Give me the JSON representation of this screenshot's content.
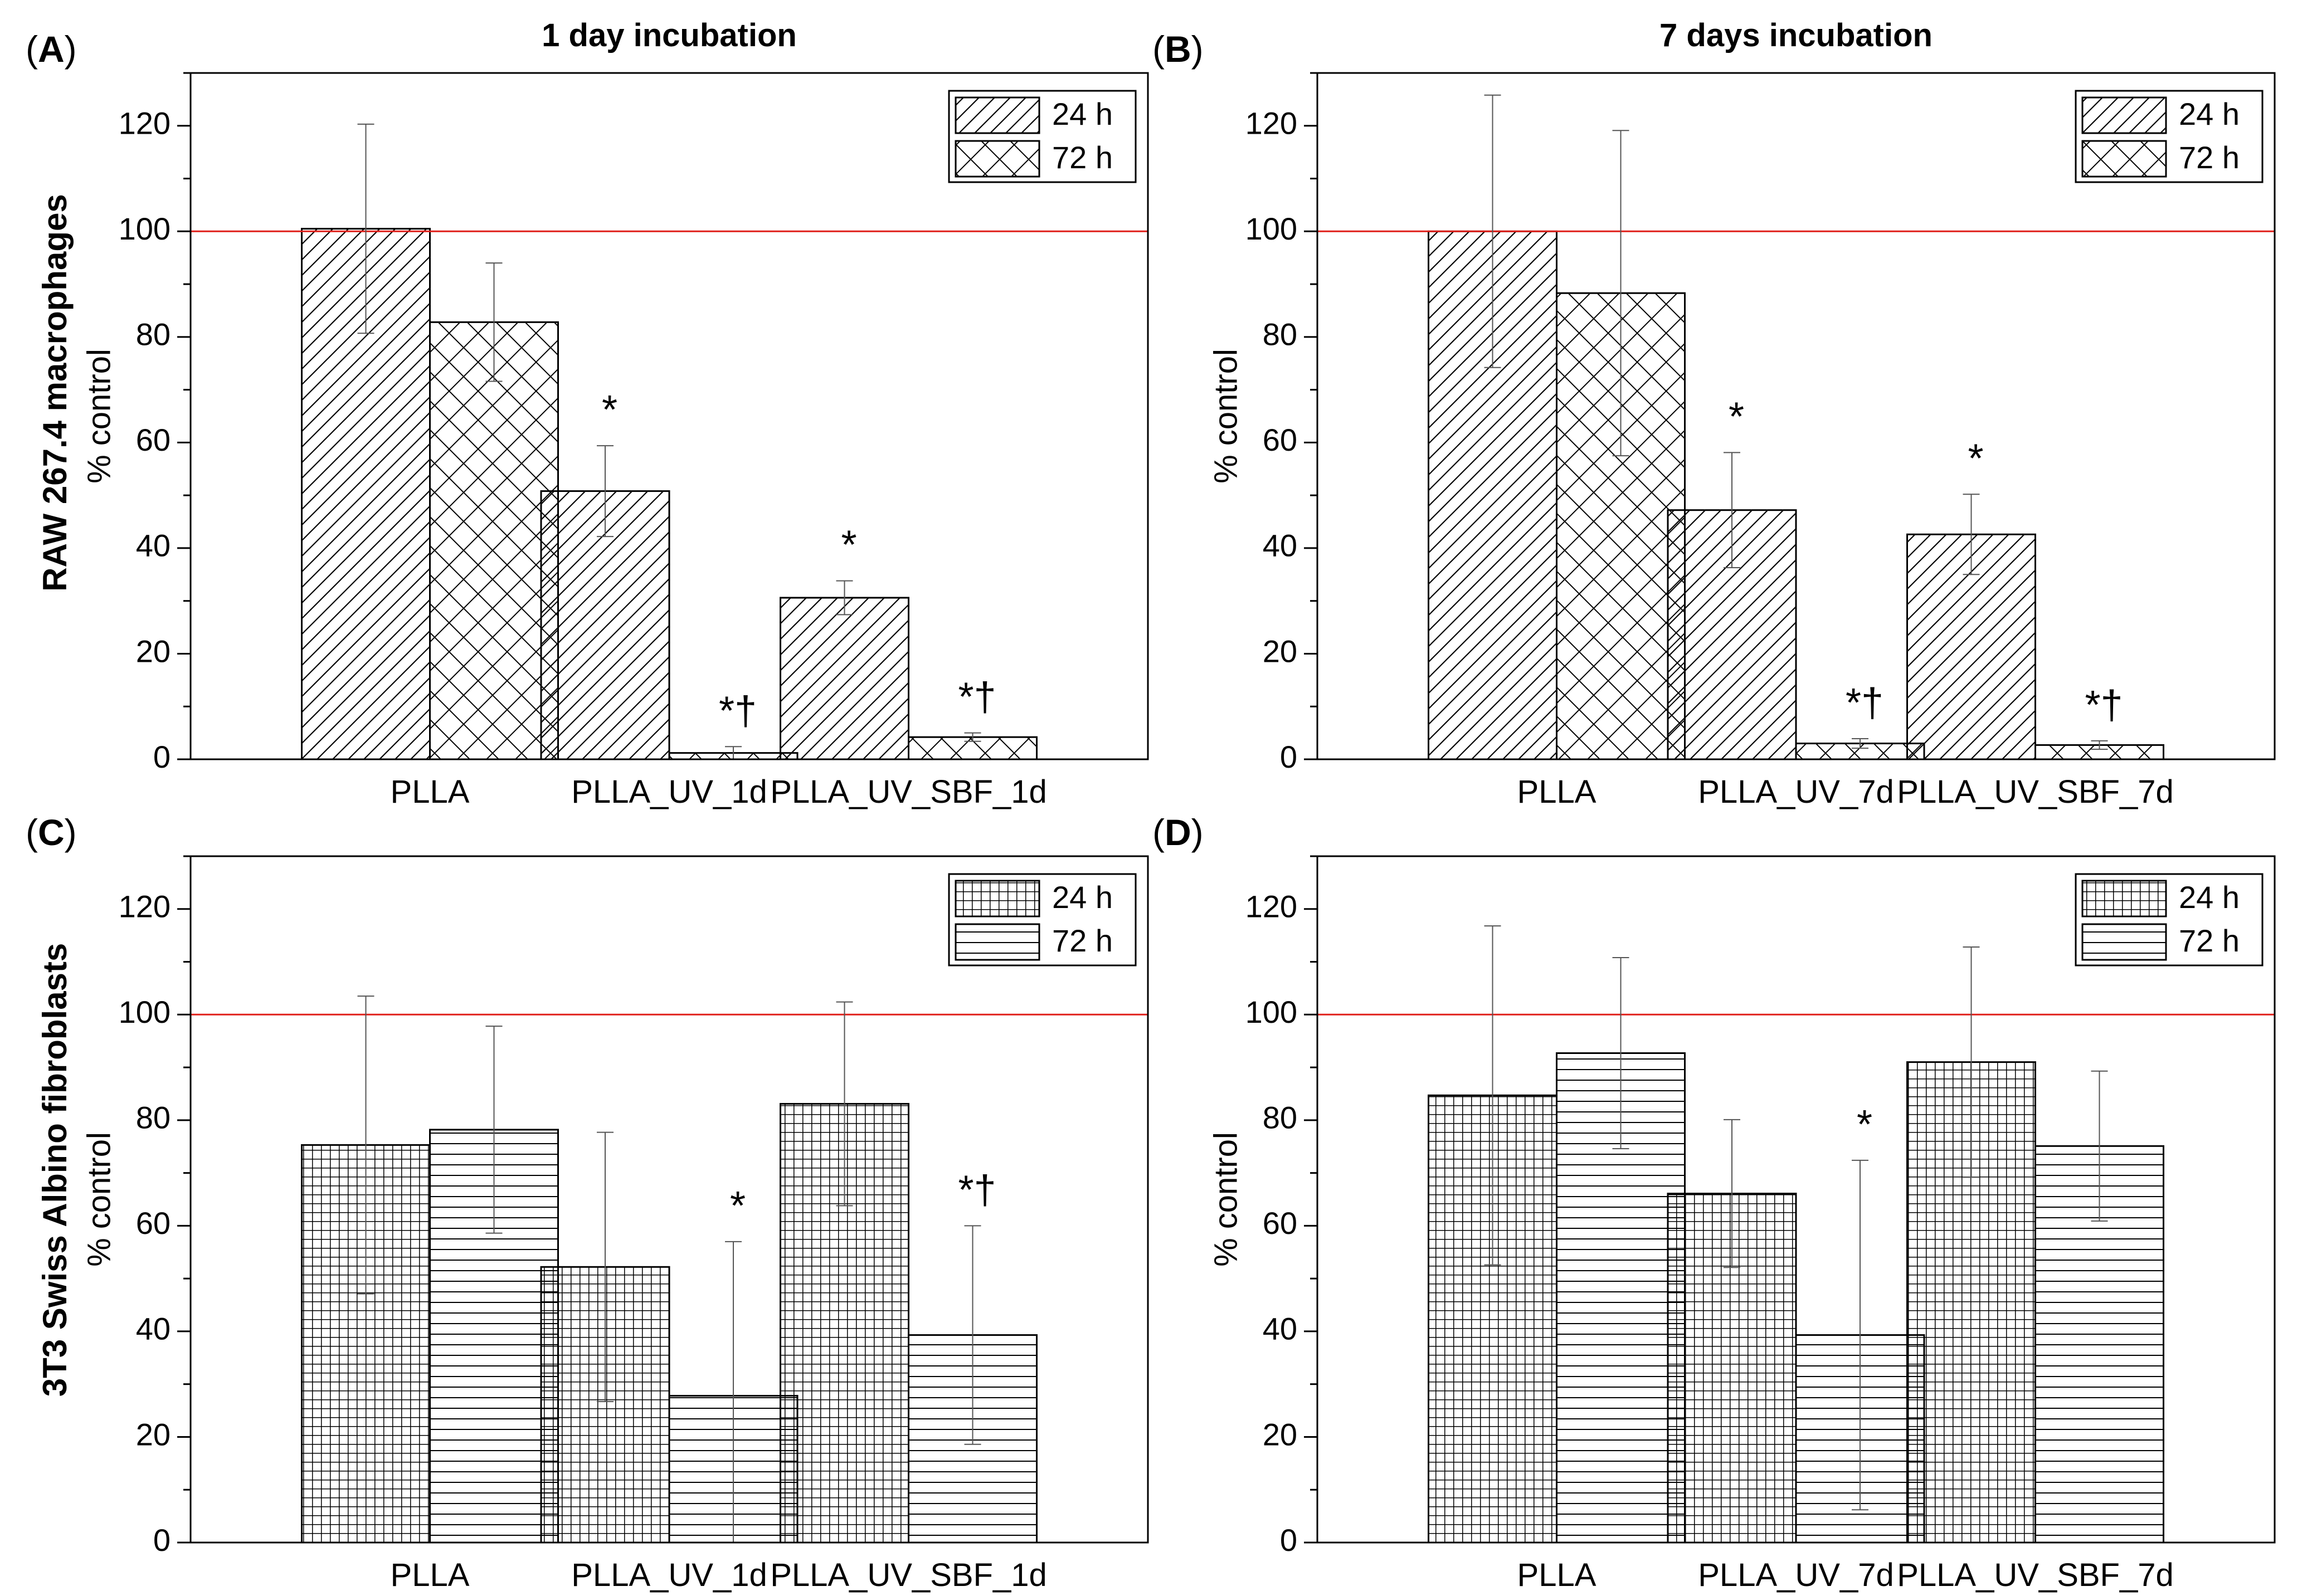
{
  "figure": {
    "row_labels": [
      "RAW 267.4 macrophages",
      "3T3 Swiss Albino fibroblasts"
    ]
  },
  "chart_data": [
    {
      "type": "bar",
      "panel_label": "A",
      "title": "1 day incubation",
      "xlabel": "",
      "ylabel": "% control",
      "ylim": [
        0,
        130
      ],
      "yticks": [
        "0",
        "20",
        "40",
        "60",
        "80",
        "100",
        "120"
      ],
      "reference_line": {
        "value": 100,
        "color": "#e0201b"
      },
      "categories": [
        "PLLA",
        "PLLA_UV_1d",
        "PLLA_UV_SBF_1d"
      ],
      "series": [
        {
          "name": "24 h",
          "pattern": "diag",
          "values": [
            100.5,
            50.8,
            30.6
          ],
          "errors": [
            19.8,
            8.6,
            3.2
          ]
        },
        {
          "name": "72 h",
          "pattern": "cross",
          "values": [
            82.8,
            1.2,
            4.2
          ],
          "errors": [
            11.2,
            1.2,
            0.8
          ]
        }
      ],
      "annotations": [
        {
          "category": 1,
          "series": 0,
          "text": "*"
        },
        {
          "category": 1,
          "series": 1,
          "text": "*†"
        },
        {
          "category": 2,
          "series": 0,
          "text": "*"
        },
        {
          "category": 2,
          "series": 1,
          "text": "*†"
        }
      ],
      "legend_position": "top-right"
    },
    {
      "type": "bar",
      "panel_label": "B",
      "title": "7 days incubation",
      "xlabel": "",
      "ylabel": "% control",
      "ylim": [
        0,
        130
      ],
      "yticks": [
        "0",
        "20",
        "40",
        "60",
        "80",
        "100",
        "120"
      ],
      "reference_line": {
        "value": 100,
        "color": "#e0201b"
      },
      "categories": [
        "PLLA",
        "PLLA_UV_7d",
        "PLLA_UV_SBF_7d"
      ],
      "series": [
        {
          "name": "24 h",
          "pattern": "diag",
          "values": [
            100.0,
            47.2,
            42.6
          ],
          "errors": [
            25.8,
            10.9,
            7.6
          ]
        },
        {
          "name": "72 h",
          "pattern": "cross",
          "values": [
            88.3,
            3.0,
            2.7
          ],
          "errors": [
            30.8,
            0.9,
            0.8
          ]
        }
      ],
      "annotations": [
        {
          "category": 1,
          "series": 0,
          "text": "*"
        },
        {
          "category": 1,
          "series": 1,
          "text": "*†"
        },
        {
          "category": 2,
          "series": 0,
          "text": "*"
        },
        {
          "category": 2,
          "series": 1,
          "text": "*†"
        }
      ],
      "legend_position": "top-right"
    },
    {
      "type": "bar",
      "panel_label": "C",
      "title": "",
      "xlabel": "",
      "ylabel": "% control",
      "ylim": [
        0,
        130
      ],
      "yticks": [
        "0",
        "20",
        "40",
        "60",
        "80",
        "100",
        "120"
      ],
      "reference_line": {
        "value": 100,
        "color": "#e0201b"
      },
      "categories": [
        "PLLA",
        "PLLA_UV_1d",
        "PLLA_UV_SBF_1d"
      ],
      "series": [
        {
          "name": "24 h",
          "pattern": "grid",
          "values": [
            75.3,
            52.2,
            83.1
          ],
          "errors": [
            28.2,
            25.5,
            19.3
          ]
        },
        {
          "name": "72 h",
          "pattern": "hlines",
          "values": [
            78.2,
            27.8,
            39.3
          ],
          "errors": [
            19.6,
            29.2,
            20.7
          ]
        }
      ],
      "annotations": [
        {
          "category": 1,
          "series": 1,
          "text": "*"
        },
        {
          "category": 2,
          "series": 1,
          "text": "*†"
        }
      ],
      "legend_position": "top-right"
    },
    {
      "type": "bar",
      "panel_label": "D",
      "title": "",
      "xlabel": "",
      "ylabel": "% control",
      "ylim": [
        0,
        130
      ],
      "yticks": [
        "0",
        "20",
        "40",
        "60",
        "80",
        "100",
        "120"
      ],
      "reference_line": {
        "value": 100,
        "color": "#e0201b"
      },
      "categories": [
        "PLLA",
        "PLLA_UV_7d",
        "PLLA_UV_SBF_7d"
      ],
      "series": [
        {
          "name": "24 h",
          "pattern": "grid",
          "values": [
            84.7,
            66.1,
            91.0
          ],
          "errors": [
            32.1,
            14.0,
            21.8
          ]
        },
        {
          "name": "72 h",
          "pattern": "hlines",
          "values": [
            92.7,
            39.3,
            75.1
          ],
          "errors": [
            18.1,
            33.1,
            14.2
          ]
        }
      ],
      "annotations": [
        {
          "category": 1,
          "series": 1,
          "text": "*"
        }
      ],
      "legend_position": "top-right"
    }
  ]
}
